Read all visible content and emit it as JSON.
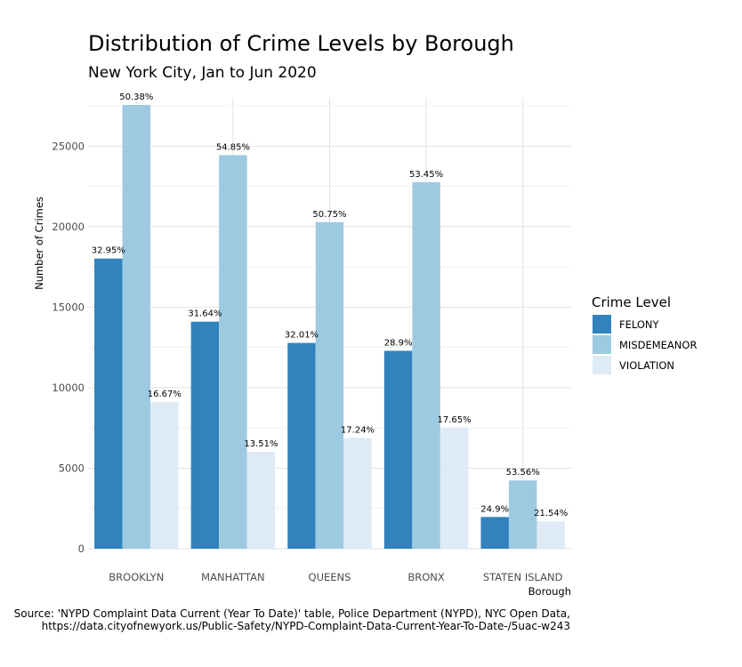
{
  "chart_data": {
    "type": "bar",
    "title": "Distribution of Crime Levels by Borough",
    "subtitle": "New York City, Jan to Jun 2020",
    "xlabel": "Borough",
    "ylabel": "Number of Crimes",
    "ylim": [
      0,
      28000
    ],
    "yticks": [
      0,
      5000,
      10000,
      15000,
      20000,
      25000
    ],
    "grid": true,
    "legend_title": "Crime Level",
    "legend_position": "right",
    "categories": [
      "BROOKLYN",
      "MANHATTAN",
      "QUEENS",
      "BRONX",
      "STATEN ISLAND"
    ],
    "series": [
      {
        "name": "FELONY",
        "color": "#3182bd",
        "values": [
          18020,
          14100,
          12780,
          12290,
          1970
        ],
        "labels": [
          "32.95%",
          "31.64%",
          "32.01%",
          "28.9%",
          "24.9%"
        ]
      },
      {
        "name": "MISDEMEANOR",
        "color": "#9ecae1",
        "values": [
          27560,
          24440,
          20280,
          22760,
          4240
        ],
        "labels": [
          "50.38%",
          "54.85%",
          "50.75%",
          "53.45%",
          "53.56%"
        ]
      },
      {
        "name": "VIOLATION",
        "color": "#deebf7",
        "values": [
          9120,
          6020,
          6880,
          7510,
          1700
        ],
        "labels": [
          "16.67%",
          "13.51%",
          "17.24%",
          "17.65%",
          "21.54%"
        ]
      }
    ]
  },
  "caption_lines": [
    "Source: 'NYPD Complaint Data Current (Year To Date)' table, Police Department (NYPD), NYC Open Data,",
    "https://data.cityofnewyork.us/Public-Safety/NYPD-Complaint-Data-Current-Year-To-Date-/5uac-w243"
  ]
}
